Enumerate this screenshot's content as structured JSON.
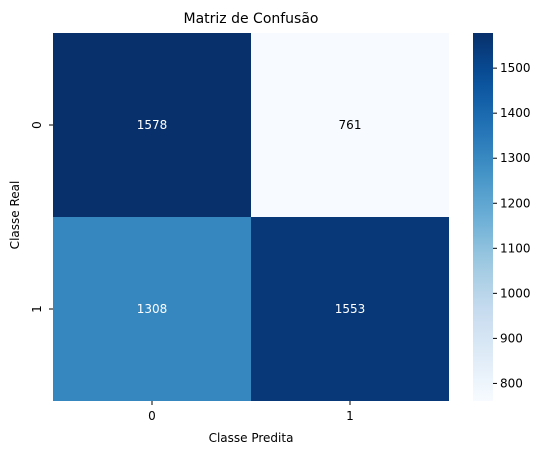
{
  "chart_data": {
    "type": "heatmap",
    "title": "Matriz de Confusão",
    "xlabel": "Classe Predita",
    "ylabel": "Classe Real",
    "x_categories": [
      "0",
      "1"
    ],
    "y_categories": [
      "0",
      "1"
    ],
    "values": [
      [
        1578,
        761
      ],
      [
        1308,
        1553
      ]
    ],
    "colormap": "Blues",
    "colorbar": {
      "min": 761,
      "max": 1578,
      "ticks": [
        800,
        900,
        1000,
        1100,
        1200,
        1300,
        1400,
        1500
      ]
    }
  }
}
